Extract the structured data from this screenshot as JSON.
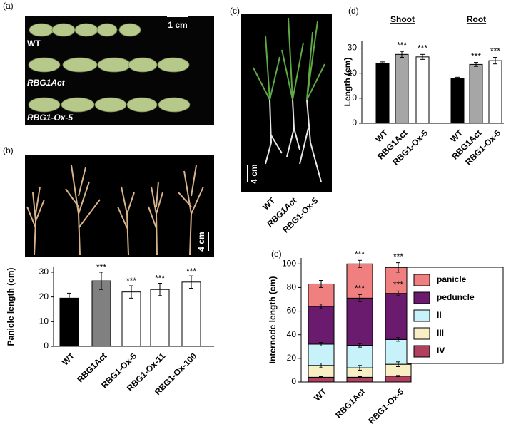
{
  "panel_labels": [
    "(a)",
    "(b)",
    "(c)",
    "(d)",
    "(e)"
  ],
  "photos": {
    "a": {
      "scale_bar": "1 cm",
      "rows": [
        "WT",
        "RBG1Act",
        "RBG1-Ox-5"
      ]
    },
    "b": {
      "scale_bar": "4 cm"
    },
    "c": {
      "scale_bar": "4 cm",
      "labels": [
        "WT",
        "RBG1Act",
        "RBG1-Ox-5"
      ]
    }
  },
  "chart_data": [
    {
      "type": "bar",
      "y_label": "Panicle length (cm)",
      "categories": [
        "WT",
        "RBG1Act",
        "RBG1-Ox-5",
        "RBG1-Ox-11",
        "RBG1-Ox-100"
      ],
      "values": [
        19.5,
        26.5,
        22,
        23,
        26
      ],
      "errors": [
        2,
        3.5,
        2.5,
        2.5,
        2.5
      ],
      "significance": [
        null,
        "***",
        "***",
        "***",
        "***"
      ],
      "colors": [
        "#000000",
        "#808080",
        "#ffffff",
        "#ffffff",
        "#ffffff"
      ],
      "ylim": [
        0,
        32
      ],
      "yticks": [
        0,
        10,
        20,
        30
      ]
    },
    {
      "type": "grouped_bar",
      "y_label": "Length (cm)",
      "categories": [
        "WT",
        "RBG1Act",
        "RBG1-Ox-5"
      ],
      "colors": [
        "#000000",
        "#a6a6a6",
        "#ffffff"
      ],
      "series": [
        {
          "name": "Shoot",
          "values": [
            24,
            27.5,
            26.5
          ],
          "errors": [
            0.5,
            1.2,
            1
          ],
          "significance": [
            null,
            "***",
            "***"
          ]
        },
        {
          "name": "Root",
          "values": [
            18,
            23.5,
            25
          ],
          "errors": [
            0.4,
            0.8,
            1.3
          ],
          "significance": [
            null,
            "***",
            "***"
          ]
        }
      ],
      "ylim": [
        0,
        33
      ],
      "yticks": [
        0,
        10,
        20,
        30
      ]
    },
    {
      "type": "stacked_bar",
      "y_label": "Internode length (cm)",
      "categories": [
        "WT",
        "RBG1Act",
        "RBG1-Ox-5"
      ],
      "series": [
        {
          "name": "IV",
          "color": "#b0405e",
          "values": [
            4,
            4,
            5
          ],
          "errors": [
            0.5,
            0.5,
            0.5
          ]
        },
        {
          "name": "III",
          "color": "#f8f0c4",
          "values": [
            10,
            8,
            10
          ],
          "errors": [
            2,
            2,
            2
          ]
        },
        {
          "name": "II",
          "color": "#c8f2fa",
          "values": [
            18,
            19,
            21
          ],
          "errors": [
            1.5,
            1.5,
            1.5
          ]
        },
        {
          "name": "peduncle",
          "color": "#6b1b6e",
          "values": [
            32,
            40,
            39
          ],
          "errors": [
            2,
            3,
            2
          ],
          "significance": [
            null,
            "***",
            "***"
          ]
        },
        {
          "name": "panicle",
          "color": "#f08080",
          "values": [
            19,
            29,
            22
          ],
          "errors": [
            3,
            3,
            4
          ],
          "significance": [
            null,
            "***",
            "***"
          ]
        }
      ],
      "legend": "right",
      "ylim": [
        0,
        105
      ],
      "yticks": [
        0,
        20,
        40,
        60,
        80,
        100
      ]
    }
  ]
}
